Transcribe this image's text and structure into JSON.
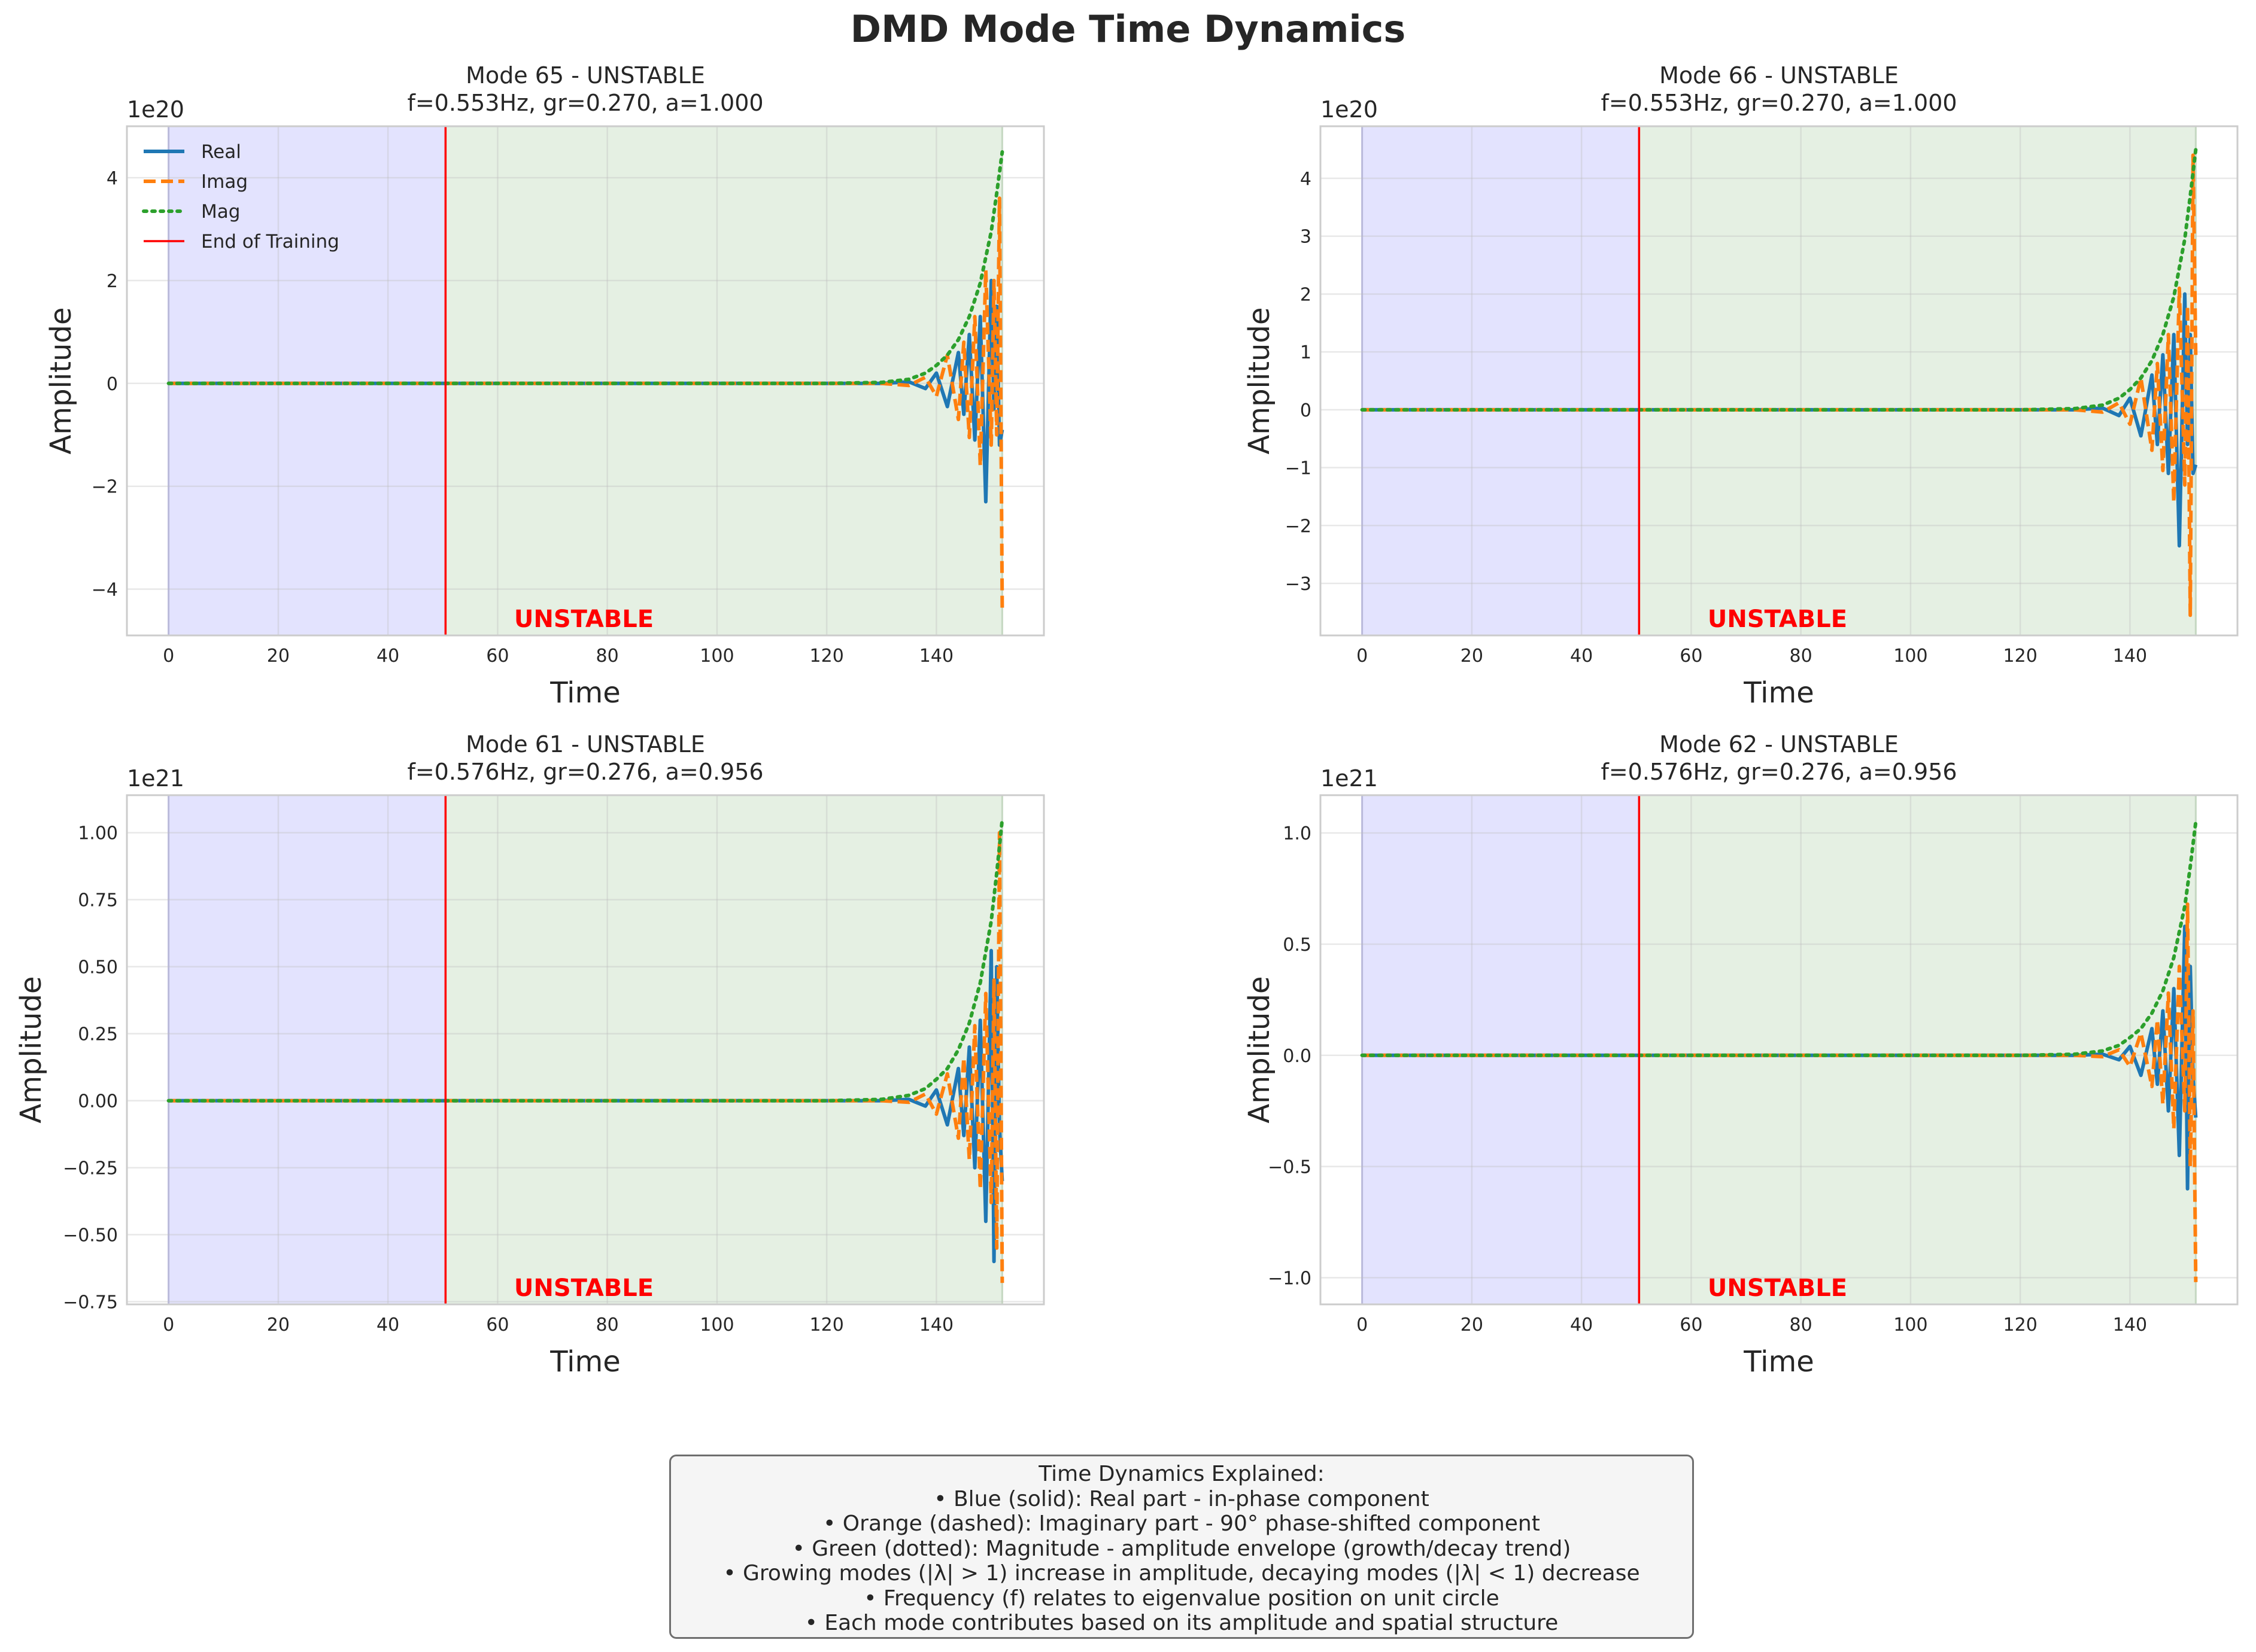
{
  "figure": {
    "title": "DMD Mode Time Dynamics"
  },
  "explanation": {
    "title": "Time Dynamics Explained:",
    "lines": [
      "• Blue (solid): Real part - in-phase component",
      "• Orange (dashed): Imaginary part - 90° phase-shifted component",
      "• Green (dotted): Magnitude - amplitude envelope (growth/decay trend)",
      "• Growing modes (|λ| > 1) increase in amplitude, decaying modes (|λ| < 1) decrease",
      "• Frequency (f) relates to eigenvalue position on unit circle",
      "• Each mode contributes based on its amplitude and spatial structure"
    ]
  },
  "colors": {
    "real": "#1f77b4",
    "imag": "#ff7f0e",
    "mag": "#2ca02c",
    "training_line": "#ff0000",
    "training_region": "#e3e3fe",
    "forecast_region": "#e5f0e3",
    "status_text": "#ff0000"
  },
  "chart_data": [
    {
      "type": "line",
      "title_line1": "Mode 65 - UNSTABLE",
      "title_line2": "f=0.553Hz, gr=0.270, a=1.000",
      "xlabel": "Time",
      "ylabel": "Amplitude",
      "offset_label": "1e20",
      "status_label": "UNSTABLE",
      "xlim": [
        -7.6,
        159.6
      ],
      "ylim": [
        -4.9,
        5.0
      ],
      "xticks": [
        0,
        20,
        40,
        60,
        80,
        100,
        120,
        140
      ],
      "yticks": [
        -4,
        -2,
        0,
        2,
        4
      ],
      "ytick_labels": [
        "−4",
        "−2",
        "0",
        "2",
        "4"
      ],
      "training_end": 50.5,
      "forecast_end": 152,
      "training_region": [
        0,
        50.5
      ],
      "forecast_region": [
        50.5,
        152
      ],
      "legend": {
        "position": "upper left",
        "entries": [
          "Real",
          "Imag",
          "Mag",
          "End of Training"
        ]
      },
      "series": [
        {
          "name": "Real",
          "style": "solid",
          "x": [
            130,
            135,
            138,
            140,
            142,
            144,
            145,
            146,
            147,
            148,
            149,
            150,
            150.5,
            151,
            151.5,
            152
          ],
          "values": [
            0,
            0.03,
            -0.1,
            0.2,
            -0.45,
            0.6,
            -0.6,
            0.95,
            -1.1,
            1.3,
            -2.3,
            2.0,
            -0.5,
            1.5,
            -1.2,
            -0.9
          ]
        },
        {
          "name": "Imag",
          "style": "dashed",
          "x": [
            130,
            135,
            138,
            140,
            142,
            144,
            145,
            146,
            147,
            148,
            149,
            150,
            150.5,
            151,
            151.5,
            152
          ],
          "values": [
            0,
            -0.04,
            0.12,
            -0.25,
            0.55,
            -0.7,
            0.8,
            -1.05,
            1.3,
            -1.6,
            2.2,
            -1.2,
            2.0,
            -1.0,
            3.6,
            -4.4
          ]
        },
        {
          "name": "Mag",
          "style": "dotted",
          "x": [
            120,
            130,
            135,
            138,
            140,
            142,
            144,
            146,
            148,
            150,
            151,
            152
          ],
          "values": [
            0,
            0.02,
            0.08,
            0.2,
            0.35,
            0.55,
            0.85,
            1.3,
            1.95,
            2.95,
            3.7,
            4.5
          ]
        }
      ]
    },
    {
      "type": "line",
      "title_line1": "Mode 66 - UNSTABLE",
      "title_line2": "f=0.553Hz, gr=0.270, a=1.000",
      "xlabel": "Time",
      "ylabel": "Amplitude",
      "offset_label": "1e20",
      "status_label": "UNSTABLE",
      "xlim": [
        -7.6,
        159.6
      ],
      "ylim": [
        -3.9,
        4.9
      ],
      "xticks": [
        0,
        20,
        40,
        60,
        80,
        100,
        120,
        140
      ],
      "yticks": [
        -3,
        -2,
        -1,
        0,
        1,
        2,
        3,
        4
      ],
      "ytick_labels": [
        "−3",
        "−2",
        "−1",
        "0",
        "1",
        "2",
        "3",
        "4"
      ],
      "training_end": 50.5,
      "forecast_end": 152,
      "training_region": [
        0,
        50.5
      ],
      "forecast_region": [
        50.5,
        152
      ],
      "legend": null,
      "series": [
        {
          "name": "Real",
          "style": "solid",
          "x": [
            130,
            135,
            138,
            140,
            142,
            144,
            145,
            146,
            147,
            148,
            149,
            150,
            150.5,
            151,
            151.5,
            152
          ],
          "values": [
            0,
            0.03,
            -0.1,
            0.2,
            -0.45,
            0.6,
            -0.6,
            0.95,
            -1.1,
            1.3,
            -2.35,
            2.0,
            -0.6,
            1.3,
            -1.1,
            -0.95
          ]
        },
        {
          "name": "Imag",
          "style": "dashed",
          "x": [
            130,
            135,
            138,
            140,
            142,
            144,
            145,
            146,
            147,
            148,
            149,
            150,
            150.5,
            151,
            151.5,
            152
          ],
          "values": [
            0,
            -0.04,
            0.12,
            -0.25,
            0.55,
            -0.7,
            0.8,
            -1.05,
            1.3,
            -1.6,
            2.1,
            -1.3,
            1.8,
            -3.55,
            4.4,
            0.9
          ]
        },
        {
          "name": "Mag",
          "style": "dotted",
          "x": [
            120,
            130,
            135,
            138,
            140,
            142,
            144,
            146,
            148,
            150,
            151,
            152
          ],
          "values": [
            0,
            0.02,
            0.08,
            0.2,
            0.35,
            0.55,
            0.85,
            1.3,
            1.95,
            2.95,
            3.7,
            4.5
          ]
        }
      ]
    },
    {
      "type": "line",
      "title_line1": "Mode 61 - UNSTABLE",
      "title_line2": "f=0.576Hz, gr=0.276, a=0.956",
      "xlabel": "Time",
      "ylabel": "Amplitude",
      "offset_label": "1e21",
      "status_label": "UNSTABLE",
      "xlim": [
        -7.6,
        159.6
      ],
      "ylim": [
        -0.76,
        1.14
      ],
      "xticks": [
        0,
        20,
        40,
        60,
        80,
        100,
        120,
        140
      ],
      "yticks": [
        -0.75,
        -0.5,
        -0.25,
        0,
        0.25,
        0.5,
        0.75,
        1.0
      ],
      "ytick_labels": [
        "−0.75",
        "−0.50",
        "−0.25",
        "0.00",
        "0.25",
        "0.50",
        "0.75",
        "1.00"
      ],
      "training_end": 50.5,
      "forecast_end": 152,
      "training_region": [
        0,
        50.5
      ],
      "forecast_region": [
        50.5,
        152
      ],
      "legend": null,
      "series": [
        {
          "name": "Real",
          "style": "solid",
          "x": [
            130,
            135,
            138,
            140,
            142,
            144,
            145,
            146,
            147,
            148,
            149,
            150,
            150.5,
            151,
            151.5,
            152
          ],
          "values": [
            0,
            0.005,
            -0.02,
            0.04,
            -0.09,
            0.12,
            -0.13,
            0.2,
            -0.25,
            0.3,
            -0.45,
            0.56,
            -0.6,
            0.5,
            -0.1,
            -0.3
          ]
        },
        {
          "name": "Imag",
          "style": "dashed",
          "x": [
            130,
            135,
            138,
            140,
            142,
            144,
            145,
            146,
            147,
            148,
            149,
            150,
            150.5,
            151,
            151.5,
            152
          ],
          "values": [
            0,
            -0.006,
            0.025,
            -0.05,
            0.1,
            -0.14,
            0.16,
            -0.22,
            0.28,
            -0.33,
            0.4,
            -0.38,
            0.45,
            -0.55,
            1.0,
            -0.68
          ]
        },
        {
          "name": "Mag",
          "style": "dotted",
          "x": [
            120,
            130,
            135,
            138,
            140,
            142,
            144,
            146,
            148,
            150,
            151,
            152
          ],
          "values": [
            0,
            0.005,
            0.02,
            0.045,
            0.08,
            0.12,
            0.19,
            0.29,
            0.44,
            0.67,
            0.85,
            1.05
          ]
        }
      ]
    },
    {
      "type": "line",
      "title_line1": "Mode 62 - UNSTABLE",
      "title_line2": "f=0.576Hz, gr=0.276, a=0.956",
      "xlabel": "Time",
      "ylabel": "Amplitude",
      "offset_label": "1e21",
      "status_label": "UNSTABLE",
      "xlim": [
        -7.6,
        159.6
      ],
      "ylim": [
        -1.12,
        1.17
      ],
      "xticks": [
        0,
        20,
        40,
        60,
        80,
        100,
        120,
        140
      ],
      "yticks": [
        -1.0,
        -0.5,
        0,
        0.5,
        1.0
      ],
      "ytick_labels": [
        "−1.0",
        "−0.5",
        "0.0",
        "0.5",
        "1.0"
      ],
      "training_end": 50.5,
      "forecast_end": 152,
      "training_region": [
        0,
        50.5
      ],
      "forecast_region": [
        50.5,
        152
      ],
      "legend": null,
      "series": [
        {
          "name": "Real",
          "style": "solid",
          "x": [
            130,
            135,
            138,
            140,
            142,
            144,
            145,
            146,
            147,
            148,
            149,
            150,
            150.5,
            151,
            151.5,
            152
          ],
          "values": [
            0,
            0.005,
            -0.02,
            0.04,
            -0.09,
            0.12,
            -0.13,
            0.2,
            -0.25,
            0.3,
            -0.45,
            0.58,
            -0.6,
            0.4,
            -0.1,
            -0.28
          ]
        },
        {
          "name": "Imag",
          "style": "dashed",
          "x": [
            130,
            135,
            138,
            140,
            142,
            144,
            145,
            146,
            147,
            148,
            149,
            150,
            150.5,
            151,
            151.5,
            152
          ],
          "values": [
            0,
            -0.006,
            0.025,
            -0.05,
            0.1,
            -0.14,
            0.16,
            -0.22,
            0.28,
            -0.33,
            0.4,
            -0.25,
            0.68,
            -0.5,
            0.2,
            -1.02
          ]
        },
        {
          "name": "Mag",
          "style": "dotted",
          "x": [
            120,
            130,
            135,
            138,
            140,
            142,
            144,
            146,
            148,
            150,
            151,
            152
          ],
          "values": [
            0,
            0.005,
            0.02,
            0.045,
            0.08,
            0.12,
            0.19,
            0.29,
            0.44,
            0.67,
            0.85,
            1.05
          ]
        }
      ]
    }
  ]
}
